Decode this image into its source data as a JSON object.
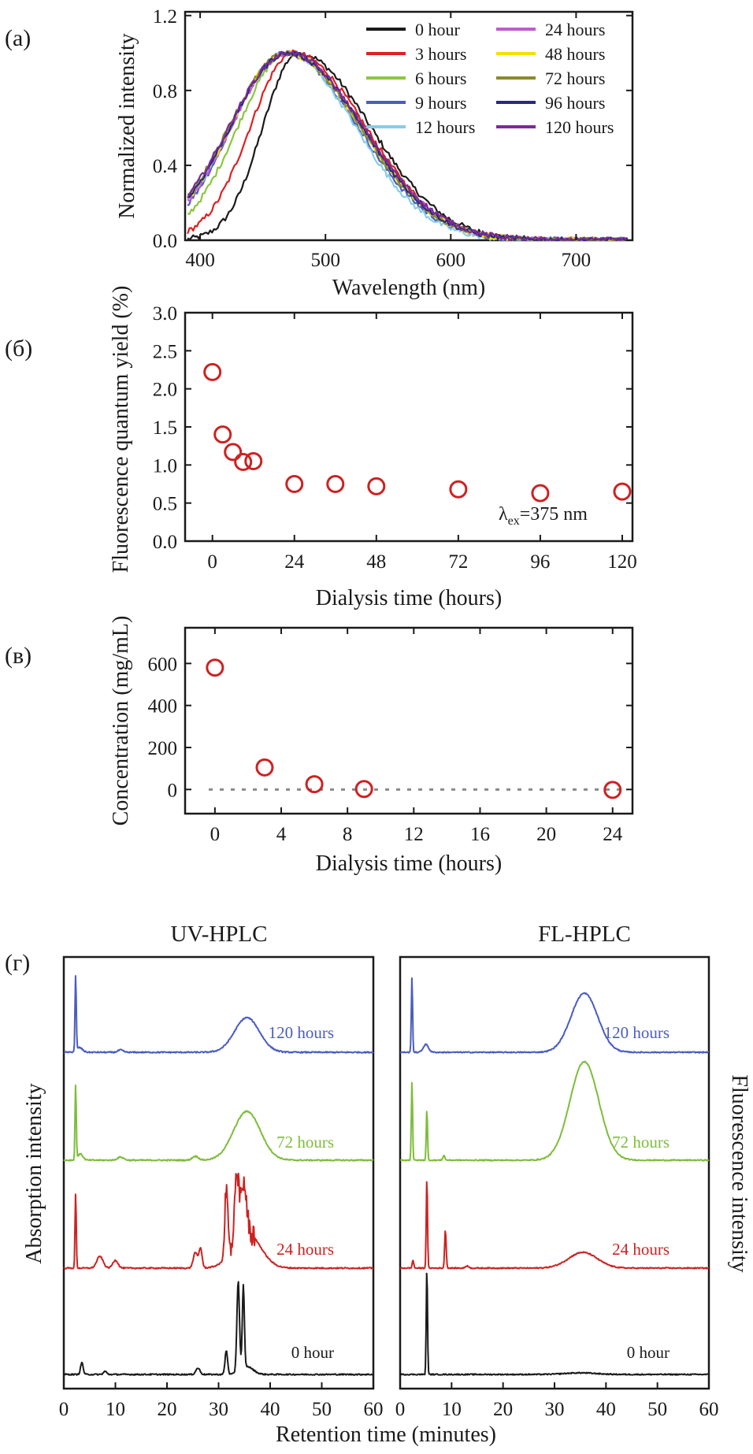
{
  "panel_labels": [
    "(а)",
    "(б)",
    "(в)",
    "(г)"
  ],
  "colors": {
    "axis": "#1a1a1a",
    "marker": "#cc2222",
    "dashed": "#8a8a8a",
    "blue": "#4a5cc0",
    "green": "#7dbd3a",
    "red": "#cc2222",
    "black": "#1a1a1a"
  },
  "chart_data": [
    {
      "id": "a",
      "type": "line",
      "xlabel": "Wavelength (nm)",
      "ylabel": "Normalized intensity",
      "xlim": [
        388,
        745
      ],
      "ylim": [
        0,
        1.22
      ],
      "xticks": [
        400,
        500,
        600,
        700
      ],
      "yticks": [
        0.0,
        0.4,
        0.8,
        1.2
      ],
      "ytick_labels": [
        "0.0",
        "0.4",
        "0.8",
        "1.2"
      ],
      "series": [
        {
          "name": "0 hour",
          "color": "#1a1a1a",
          "peak": 478,
          "sigma_l": 28,
          "sigma_r": 58
        },
        {
          "name": "3 hours",
          "color": "#e02020",
          "peak": 474,
          "sigma_l": 34,
          "sigma_r": 58
        },
        {
          "name": "6 hours",
          "color": "#8cc63f",
          "peak": 470,
          "sigma_l": 40,
          "sigma_r": 58
        },
        {
          "name": "9 hours",
          "color": "#4a5cc0",
          "peak": 468,
          "sigma_l": 43,
          "sigma_r": 58
        },
        {
          "name": "12 hours",
          "color": "#87cde6",
          "peak": 468,
          "sigma_l": 44,
          "sigma_r": 56
        },
        {
          "name": "24 hours",
          "color": "#c05ad0",
          "peak": 470,
          "sigma_l": 45,
          "sigma_r": 59
        },
        {
          "name": "48 hours",
          "color": "#f4e000",
          "peak": 469,
          "sigma_l": 45,
          "sigma_r": 59
        },
        {
          "name": "72 hours",
          "color": "#8a8a2a",
          "peak": 469,
          "sigma_l": 46,
          "sigma_r": 59
        },
        {
          "name": "96 hours",
          "color": "#2a2a7a",
          "peak": 470,
          "sigma_l": 46,
          "sigma_r": 59
        },
        {
          "name": "120 hours",
          "color": "#7a2a9a",
          "peak": 470,
          "sigma_l": 47,
          "sigma_r": 60
        }
      ]
    },
    {
      "id": "b",
      "type": "scatter",
      "xlabel": "Dialysis time (hours)",
      "ylabel": "Fluorescence quantum yield (%)",
      "xlim": [
        -8,
        123
      ],
      "ylim": [
        0,
        3.0
      ],
      "xticks": [
        0,
        24,
        48,
        72,
        96,
        120
      ],
      "yticks": [
        0.0,
        0.5,
        1.0,
        1.5,
        2.0,
        2.5,
        3.0
      ],
      "ytick_labels": [
        "0.0",
        "0.5",
        "1.0",
        "1.5",
        "2.0",
        "2.5",
        "3.0"
      ],
      "x": [
        0,
        3,
        6,
        9,
        12,
        24,
        36,
        48,
        72,
        96,
        120
      ],
      "y": [
        2.22,
        1.4,
        1.17,
        1.04,
        1.05,
        0.75,
        0.75,
        0.72,
        0.68,
        0.63,
        0.65
      ],
      "annotation": {
        "lambda": "λ",
        "sub": "ex",
        "text": "=375 nm"
      }
    },
    {
      "id": "c",
      "type": "scatter",
      "xlabel": "Dialysis time (hours)",
      "ylabel": "Concentration (mg/mL)",
      "xlim": [
        -1.8,
        25.2
      ],
      "ylim": [
        -115,
        770
      ],
      "xticks": [
        0,
        4,
        8,
        12,
        16,
        20,
        24
      ],
      "yticks": [
        0,
        200,
        400,
        600
      ],
      "x": [
        0,
        3,
        6,
        9,
        24
      ],
      "y": [
        580,
        105,
        25,
        2,
        -2
      ],
      "reference_y": 0
    },
    {
      "id": "d",
      "type": "line",
      "titles": [
        "UV-HPLC",
        "FL-HPLC"
      ],
      "xlabel": "Retention time (minutes)",
      "ylabel_left": "Absorption intensity",
      "ylabel_right": "Fluorescence intensity",
      "xlim": [
        0,
        60
      ],
      "xticks": [
        0,
        10,
        20,
        30,
        40,
        50,
        60
      ],
      "uv_traces": [
        {
          "label": "120 hours",
          "color": "#4a5cc0"
        },
        {
          "label": "72 hours",
          "color": "#7dbd3a"
        },
        {
          "label": "24 hours",
          "color": "#cc2222"
        },
        {
          "label": "0 hour",
          "color": "#1a1a1a"
        }
      ],
      "fl_traces": [
        {
          "label": "120 hours",
          "color": "#4a5cc0"
        },
        {
          "label": "72 hours",
          "color": "#7dbd3a"
        },
        {
          "label": "24 hours",
          "color": "#cc2222"
        },
        {
          "label": "0 hour",
          "color": "#1a1a1a"
        }
      ]
    }
  ]
}
